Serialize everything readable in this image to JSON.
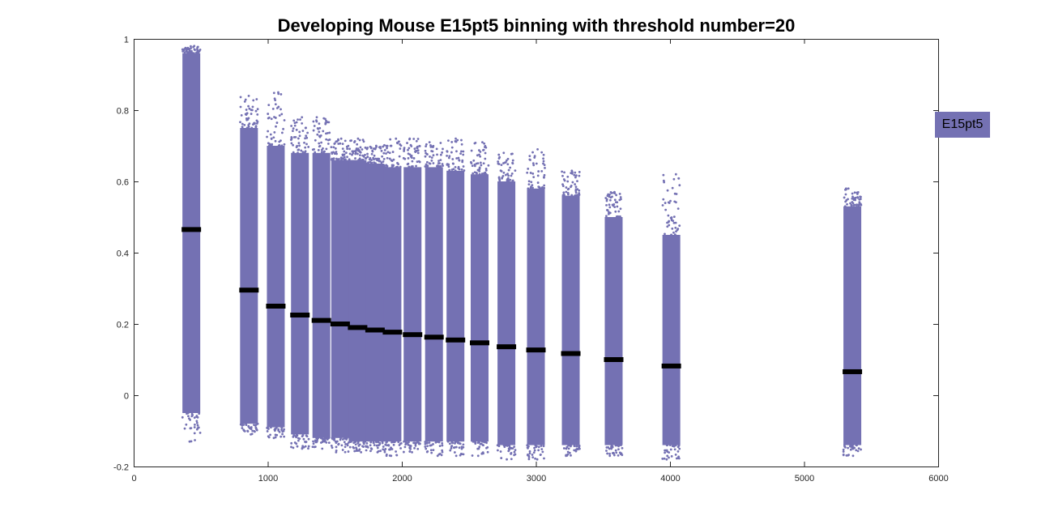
{
  "chart_data": {
    "type": "scatter",
    "title": "Developing Mouse E15pt5 binning with threshold number=20",
    "xlabel": "",
    "ylabel": "",
    "xlim": [
      0,
      6000
    ],
    "ylim": [
      -0.2,
      1
    ],
    "xticks": [
      "0",
      "1000",
      "2000",
      "3000",
      "4000",
      "5000",
      "6000"
    ],
    "yticks": [
      "-0.2",
      "0",
      "0.2",
      "0.4",
      "0.6",
      "0.8",
      "1"
    ],
    "grid": false,
    "legend": {
      "entries": [
        "E15pt5"
      ],
      "placement": "right-outside"
    },
    "colors": {
      "points": "#7471b3",
      "median": "#000000"
    },
    "series": [
      {
        "name": "E15pt5",
        "bins": [
          {
            "x": 430,
            "ymin": -0.13,
            "ymax": 0.98,
            "core_low": -0.05,
            "core_high": 0.96,
            "median": 0.465
          },
          {
            "x": 860,
            "ymin": -0.11,
            "ymax": 0.84,
            "core_low": -0.08,
            "core_high": 0.75,
            "median": 0.295
          },
          {
            "x": 1060,
            "ymin": -0.12,
            "ymax": 0.85,
            "core_low": -0.09,
            "core_high": 0.7,
            "median": 0.25
          },
          {
            "x": 1240,
            "ymin": -0.15,
            "ymax": 0.78,
            "core_low": -0.11,
            "core_high": 0.68,
            "median": 0.225
          },
          {
            "x": 1400,
            "ymin": -0.15,
            "ymax": 0.78,
            "core_low": -0.12,
            "core_high": 0.68,
            "median": 0.21
          },
          {
            "x": 1540,
            "ymin": -0.16,
            "ymax": 0.72,
            "core_low": -0.12,
            "core_high": 0.66,
            "median": 0.2
          },
          {
            "x": 1670,
            "ymin": -0.16,
            "ymax": 0.72,
            "core_low": -0.13,
            "core_high": 0.66,
            "median": 0.19
          },
          {
            "x": 1800,
            "ymin": -0.16,
            "ymax": 0.7,
            "core_low": -0.13,
            "core_high": 0.65,
            "median": 0.183
          },
          {
            "x": 1930,
            "ymin": -0.17,
            "ymax": 0.72,
            "core_low": -0.13,
            "core_high": 0.64,
            "median": 0.177
          },
          {
            "x": 2080,
            "ymin": -0.16,
            "ymax": 0.72,
            "core_low": -0.13,
            "core_high": 0.64,
            "median": 0.17
          },
          {
            "x": 2240,
            "ymin": -0.17,
            "ymax": 0.71,
            "core_low": -0.13,
            "core_high": 0.64,
            "median": 0.163
          },
          {
            "x": 2400,
            "ymin": -0.17,
            "ymax": 0.72,
            "core_low": -0.13,
            "core_high": 0.63,
            "median": 0.155
          },
          {
            "x": 2580,
            "ymin": -0.17,
            "ymax": 0.71,
            "core_low": -0.13,
            "core_high": 0.62,
            "median": 0.147
          },
          {
            "x": 2780,
            "ymin": -0.18,
            "ymax": 0.68,
            "core_low": -0.14,
            "core_high": 0.6,
            "median": 0.136
          },
          {
            "x": 3000,
            "ymin": -0.18,
            "ymax": 0.69,
            "core_low": -0.14,
            "core_high": 0.58,
            "median": 0.127
          },
          {
            "x": 3260,
            "ymin": -0.17,
            "ymax": 0.63,
            "core_low": -0.14,
            "core_high": 0.56,
            "median": 0.117
          },
          {
            "x": 3580,
            "ymin": -0.17,
            "ymax": 0.57,
            "core_low": -0.14,
            "core_high": 0.5,
            "median": 0.1
          },
          {
            "x": 4010,
            "ymin": -0.18,
            "ymax": 0.62,
            "core_low": -0.14,
            "core_high": 0.45,
            "median": 0.082
          },
          {
            "x": 5360,
            "ymin": -0.17,
            "ymax": 0.58,
            "core_low": -0.14,
            "core_high": 0.53,
            "median": 0.066
          }
        ]
      }
    ]
  }
}
